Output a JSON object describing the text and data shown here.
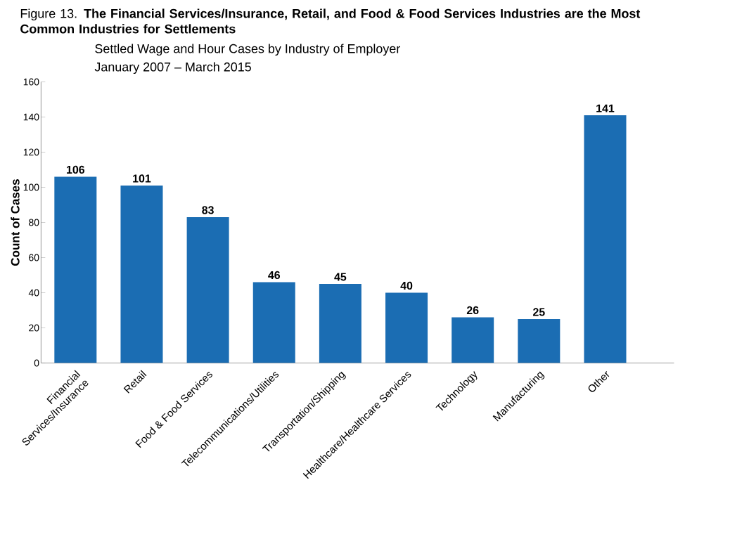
{
  "chart_data": {
    "type": "bar",
    "title": "Figure 13. **The Financial Services/Insurance, Retail, and Food & Food Services Industries are the Most Common Industries for Settlements**",
    "subtitle": "Settled Wage and Hour Cases by Industry of Employer",
    "annotations": [
      "January 2007 – March 2015"
    ],
    "ylabel": "Count of Cases",
    "categories": [
      "Financial Services/Insurance",
      "Retail",
      "Food & Food Services",
      "Telecommunications/Utilities",
      "Transportation/Shipping",
      "Healthcare/Healthcare Services",
      "Technology",
      "Manufacturing",
      "Other"
    ],
    "values": [
      106,
      101,
      83,
      46,
      45,
      40,
      26,
      25,
      141
    ],
    "color": "#1b6db3",
    "ylim": [
      0,
      160
    ],
    "yticks": [
      0,
      20,
      40,
      60,
      80,
      100,
      120,
      140,
      160
    ],
    "grid": false,
    "data_labels": true
  }
}
